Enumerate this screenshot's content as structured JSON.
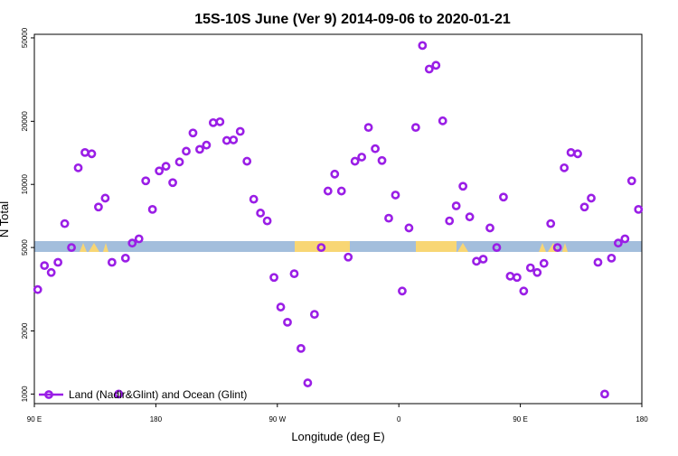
{
  "chart_data": {
    "type": "scatter",
    "title": "15S-10S June (Ver 9)   2014-09-06 to 2020-01-21",
    "xlabel": "Longitude (deg E)",
    "ylabel": "N Total",
    "xlim": [
      0,
      450
    ],
    "ylim": [
      900,
      52000
    ],
    "yscale": "log",
    "x_ticks": [
      {
        "value": 0,
        "label": "90 E"
      },
      {
        "value": 90,
        "label": "180"
      },
      {
        "value": 180,
        "label": "90 W"
      },
      {
        "value": 270,
        "label": "0"
      },
      {
        "value": 360,
        "label": "90 E"
      },
      {
        "value": 450,
        "label": "180"
      }
    ],
    "y_ticks": [
      {
        "value": 1000,
        "label": "1000"
      },
      {
        "value": 2000,
        "label": "2000"
      },
      {
        "value": 5000,
        "label": "5000"
      },
      {
        "value": 10000,
        "label": "10000"
      },
      {
        "value": 20000,
        "label": "20000"
      },
      {
        "value": 50000,
        "label": "50000"
      }
    ],
    "legend": {
      "position": "bottom-left",
      "label": "Land (Nadir&Glint) and Ocean (Glint)"
    },
    "series": [
      {
        "name": "Land (Nadir&Glint) and Ocean (Glint)",
        "color": "#9a1ee6",
        "x": [
          2.5,
          7.5,
          12.5,
          17.5,
          22.5,
          27.5,
          32.5,
          37.5,
          42.5,
          47.5,
          52.5,
          57.5,
          62.5,
          67.5,
          72.5,
          77.5,
          82.5,
          87.5,
          92.5,
          97.5,
          102.5,
          107.5,
          112.5,
          117.5,
          122.5,
          127.5,
          132.5,
          137.5,
          142.5,
          147.5,
          152.5,
          157.5,
          162.5,
          167.5,
          172.5,
          177.5,
          182.5,
          187.5,
          192.5,
          197.5,
          202.5,
          207.5,
          212.5,
          217.5,
          222.5,
          227.5,
          232.5,
          237.5,
          242.5,
          247.5,
          252.5,
          257.5,
          262.5,
          267.5,
          272.5,
          277.5,
          282.5,
          287.5,
          292.5,
          297.5,
          302.5,
          307.5,
          312.5,
          317.5,
          322.5,
          327.5,
          332.5,
          337.5,
          342.5,
          347.5,
          352.5,
          357.5,
          362.5,
          367.5,
          372.5,
          377.5,
          382.5,
          387.5,
          392.5,
          397.5,
          402.5,
          407.5,
          412.5,
          417.5,
          422.5,
          427.5,
          432.5,
          437.5,
          442.5,
          447.5
        ],
        "y": [
          3150,
          4100,
          3800,
          4250,
          6500,
          5000,
          12000,
          14200,
          14000,
          7800,
          8600,
          4250,
          1000,
          4450,
          5250,
          5500,
          10400,
          7600,
          11600,
          12200,
          10200,
          12800,
          14400,
          17600,
          14700,
          15400,
          19700,
          19900,
          16200,
          16300,
          17900,
          12900,
          8500,
          7300,
          6700,
          3600,
          2600,
          2200,
          3750,
          1650,
          1130,
          2400,
          5000,
          9300,
          11200,
          9300,
          4500,
          12900,
          13500,
          18700,
          14800,
          13000,
          6900,
          8900,
          3100,
          6200,
          18700,
          46000,
          35500,
          37000,
          20100,
          6700,
          7900,
          9800,
          7000,
          4300,
          4400,
          6200,
          5000,
          8700,
          3650,
          3600,
          3100,
          4000,
          3800,
          4200,
          6500,
          5000,
          12000,
          14200,
          14000,
          7800,
          8600,
          4250,
          1000,
          4450,
          5250,
          5500,
          10400,
          7600
        ]
      }
    ]
  }
}
